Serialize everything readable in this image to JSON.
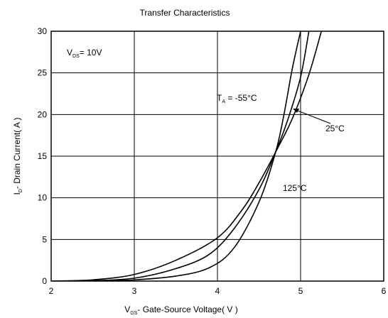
{
  "chart_data": {
    "type": "line",
    "title": "Transfer Characteristics",
    "xlabel": {
      "main": "V",
      "sub": "GS",
      "rest": "- Gate-Source Voltage( V )"
    },
    "ylabel": {
      "main": "I",
      "sub": "D",
      "rest": "- Drain Current( A )"
    },
    "xlim": [
      2,
      6
    ],
    "ylim": [
      0,
      30
    ],
    "xticks": [
      "2",
      "3",
      "4",
      "5",
      "6"
    ],
    "yticks": [
      "0",
      "5",
      "10",
      "15",
      "20",
      "25",
      "30"
    ],
    "grid": true,
    "annotations": {
      "condition": {
        "main": "V",
        "sub": "DS",
        "rest": "= 10V"
      },
      "temp_low": {
        "main": "T",
        "sub": "A",
        "rest": " = -55°C"
      },
      "temp_mid": "25°C",
      "temp_high": "125°C"
    },
    "series": [
      {
        "name": "-55°C",
        "x": [
          2.0,
          2.5,
          3.0,
          3.5,
          3.9,
          4.2,
          4.5,
          4.7,
          4.8,
          4.9,
          5.0
        ],
        "y": [
          0,
          0.02,
          0.15,
          0.6,
          1.6,
          4.0,
          9.5,
          15.5,
          20.0,
          25.5,
          30
        ]
      },
      {
        "name": "25°C",
        "x": [
          2.0,
          2.5,
          3.0,
          3.5,
          3.9,
          4.2,
          4.5,
          4.7,
          4.85,
          5.0,
          5.1
        ],
        "y": [
          0,
          0.05,
          0.35,
          1.5,
          3.2,
          6.3,
          11.0,
          15.5,
          19.5,
          24.5,
          30
        ]
      },
      {
        "name": "125°C",
        "x": [
          2.0,
          2.5,
          3.0,
          3.5,
          4.0,
          4.3,
          4.5,
          4.7,
          4.9,
          5.1,
          5.25
        ],
        "y": [
          0,
          0.15,
          0.8,
          2.5,
          5.2,
          8.6,
          11.8,
          15.5,
          19.5,
          24.8,
          30
        ]
      }
    ]
  }
}
